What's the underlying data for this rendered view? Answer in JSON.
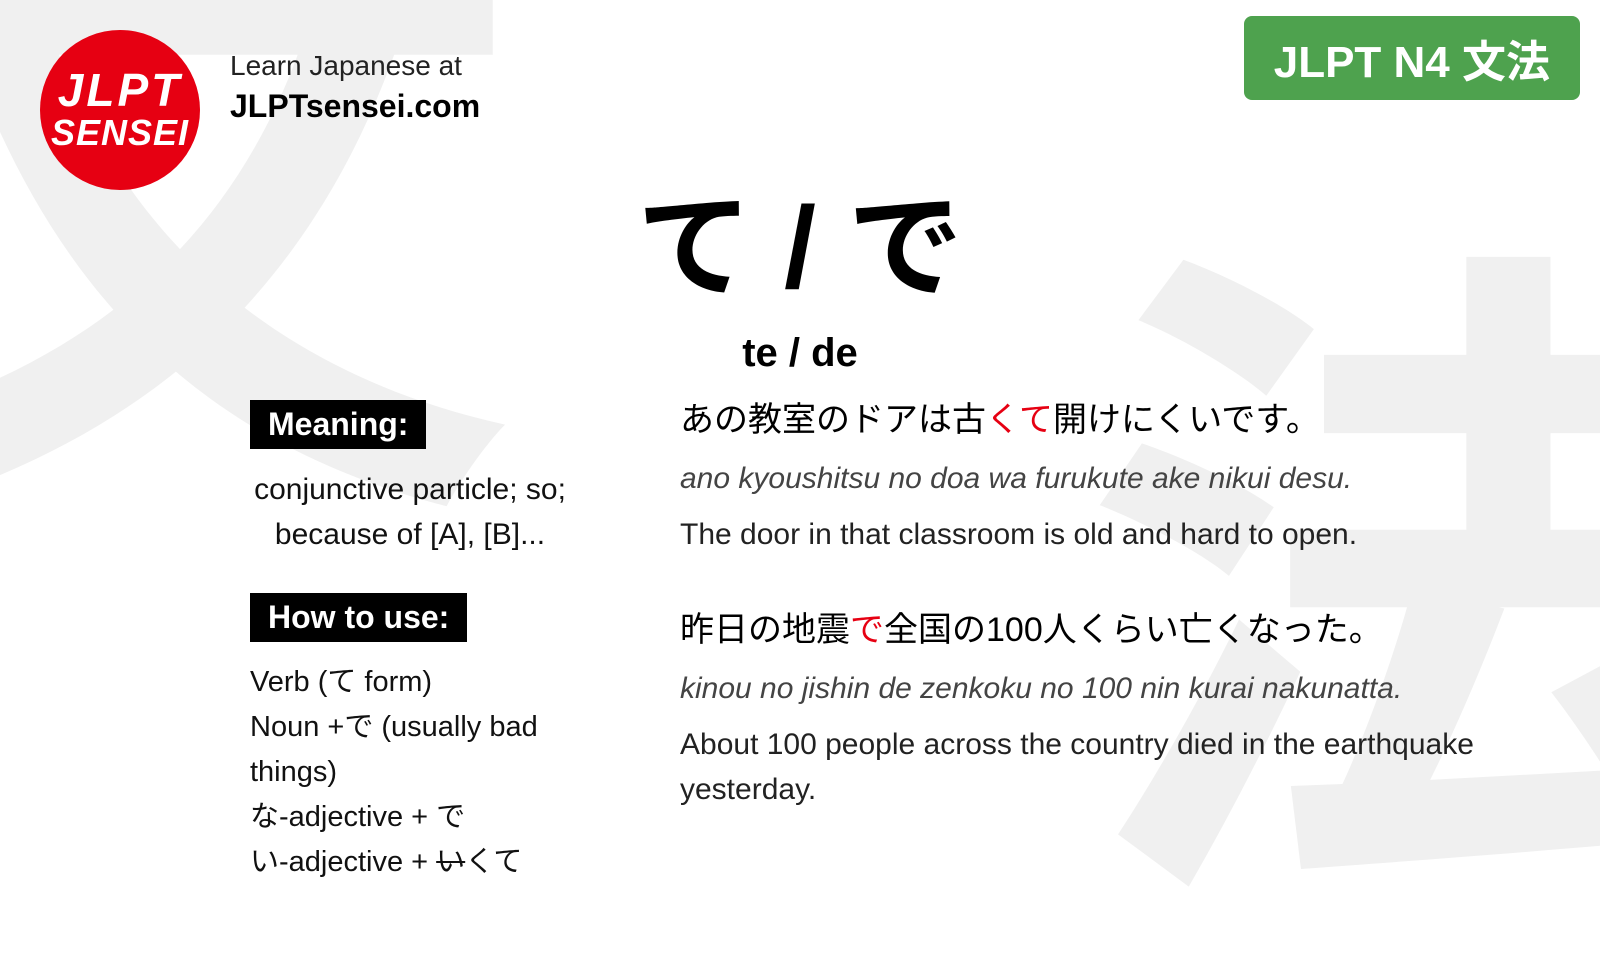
{
  "background": {
    "kanji1": "文",
    "kanji2": "法",
    "color": "#f0f0f0"
  },
  "logo": {
    "top": "JLPT",
    "bottom": "SENSEI",
    "bg_color": "#e60012",
    "text_color": "#ffffff"
  },
  "tagline": {
    "small": "Learn Japanese at",
    "big": "JLPTsensei.com"
  },
  "level_badge": {
    "text": "JLPT N4 文法",
    "bg_color": "#4ea24e"
  },
  "title": {
    "jp": "て / で",
    "romaji": "te / de"
  },
  "meaning": {
    "label": "Meaning:",
    "text1": "conjunctive particle; so;",
    "text2": "because of [A], [B]..."
  },
  "howto": {
    "label": "How to use:",
    "line1": "Verb (て form)",
    "line2": "Noun +で (usually bad things)",
    "line3": "な-adjective + で",
    "line4_pre": "い-adjective + ",
    "line4_strike": "い",
    "line4_post": "くて"
  },
  "examples": [
    {
      "jp_pre": "あの教室のドアは古",
      "jp_kw": "くて",
      "jp_post": "開けにくいです。",
      "romaji": "ano kyoushitsu no doa wa furukute ake nikui desu.",
      "en": "The door in that classroom is old and hard to open."
    },
    {
      "jp_pre": "昨日の地震",
      "jp_kw": "で",
      "jp_post": "全国の100人くらい亡くなった。",
      "romaji": "kinou no jishin de zenkoku no 100 nin kurai nakunatta.",
      "en": "About 100 people across the country died in the earthquake yesterday."
    }
  ],
  "colors": {
    "accent_red": "#e60012",
    "accent_green": "#4ea24e",
    "bg": "#ffffff",
    "text": "#000000"
  }
}
